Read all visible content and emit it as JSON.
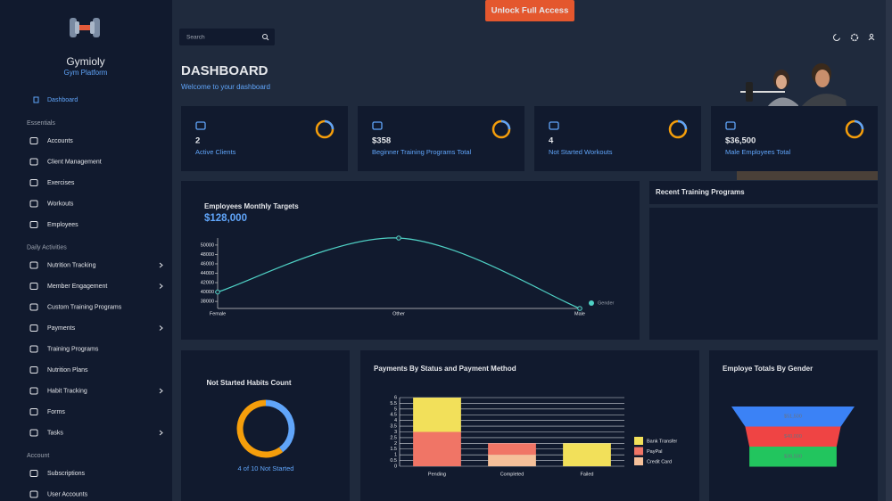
{
  "banner": {
    "button": "Unlock Full Access"
  },
  "sidebar": {
    "brand": "Gymioly",
    "tagline": "Gym Platform",
    "active": "Dashboard",
    "groups": [
      {
        "title": "Essentials",
        "items": [
          {
            "label": "Accounts",
            "expandable": false
          },
          {
            "label": "Client Management",
            "expandable": false
          },
          {
            "label": "Exercises",
            "expandable": false
          },
          {
            "label": "Workouts",
            "expandable": false
          },
          {
            "label": "Employees",
            "expandable": false
          }
        ]
      },
      {
        "title": "Daily Activities",
        "items": [
          {
            "label": "Nutrition Tracking",
            "expandable": true
          },
          {
            "label": "Member Engagement",
            "expandable": true
          },
          {
            "label": "Custom Training Programs",
            "expandable": false
          },
          {
            "label": "Payments",
            "expandable": true
          },
          {
            "label": "Training Programs",
            "expandable": false
          },
          {
            "label": "Nutrition Plans",
            "expandable": false
          },
          {
            "label": "Habit Tracking",
            "expandable": true
          },
          {
            "label": "Forms",
            "expandable": false
          },
          {
            "label": "Tasks",
            "expandable": true
          }
        ]
      },
      {
        "title": "Account",
        "items": [
          {
            "label": "Subscriptions",
            "expandable": false
          },
          {
            "label": "User Accounts",
            "expandable": false
          }
        ]
      }
    ]
  },
  "search": {
    "placeholder": "Search"
  },
  "header": {
    "title": "DASHBOARD",
    "subtitle": "Welcome to your dashboard"
  },
  "stats": [
    {
      "value": "2",
      "label": "Active Clients"
    },
    {
      "value": "$358",
      "label": "Beginner Training Programs Total"
    },
    {
      "value": "4",
      "label": "Not Started Workouts"
    },
    {
      "value": "$36,500",
      "label": "Male Employees Total"
    }
  ],
  "line_chart": {
    "type": "line",
    "title": "Employees Monthly Targets",
    "subtitle": "$128,000",
    "categories": [
      "Female",
      "Other",
      "Male"
    ],
    "series": [
      {
        "name": "Gender",
        "color": "#4fd1c5",
        "values": [
          40000,
          51500,
          36500
        ]
      }
    ],
    "ylim": [
      36500,
      51500
    ],
    "yticks": [
      38000,
      40000,
      42000,
      44000,
      46000,
      48000,
      50000
    ]
  },
  "recent_programs": {
    "title": "Recent Training Programs"
  },
  "habits": {
    "type": "donut",
    "title": "Not Started Habits Count",
    "values": [
      4,
      6
    ],
    "colors": [
      "#60a5fa",
      "#f59e0b"
    ],
    "caption": "4 of 10 Not Started"
  },
  "payments": {
    "type": "bar",
    "stacked": true,
    "title": "Payments By Status and Payment Method",
    "categories": [
      "Pending",
      "Completed",
      "Failed"
    ],
    "series": [
      {
        "name": "Bank Transfer",
        "color": "#f2e05a",
        "values": [
          3,
          0,
          2
        ]
      },
      {
        "name": "PayPal",
        "color": "#f07566",
        "values": [
          3,
          1,
          0
        ]
      },
      {
        "name": "Credit Card",
        "color": "#f5c09a",
        "values": [
          0,
          1,
          0
        ]
      }
    ],
    "ylim": [
      0,
      6
    ],
    "yticks": [
      0,
      0.5,
      1,
      1.5,
      2,
      2.5,
      3,
      3.5,
      4,
      4.5,
      5,
      5.5,
      6
    ]
  },
  "funnel": {
    "type": "funnel",
    "title": "Employe Totals By Gender",
    "values": [
      51500,
      40000,
      36500
    ],
    "value_labels": [
      "$51,500",
      "$40,000",
      "$36,500"
    ],
    "colors": [
      "#3b82f6",
      "#ef4444",
      "#22c55e"
    ]
  }
}
